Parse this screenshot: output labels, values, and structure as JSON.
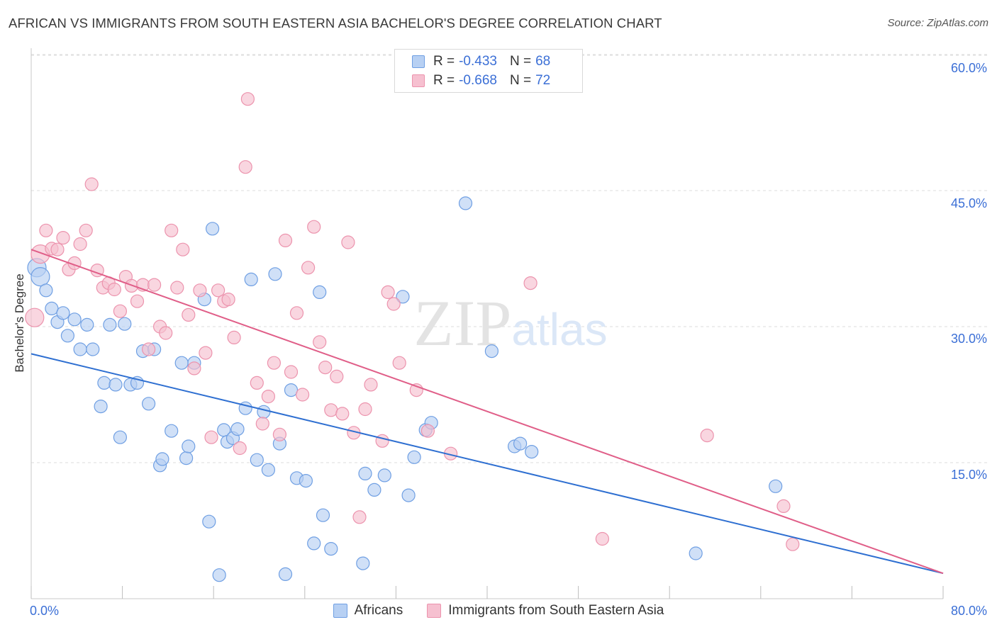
{
  "chart_data": {
    "type": "scatter",
    "title": "AFRICAN VS IMMIGRANTS FROM SOUTH EASTERN ASIA BACHELOR'S DEGREE CORRELATION CHART",
    "source": "Source: ZipAtlas.com",
    "ylabel": "Bachelor's Degree",
    "xlabel": "",
    "xlim": [
      0,
      80
    ],
    "ylim": [
      0,
      62
    ],
    "y_ticks": [
      15,
      30,
      45,
      60
    ],
    "y_tick_labels": [
      "15.0%",
      "30.0%",
      "45.0%",
      "60.0%"
    ],
    "x_tick_labels": [
      "0.0%",
      "80.0%"
    ],
    "watermark": "ZIPatlas",
    "legend": [
      {
        "r_label": "R = ",
        "r_value": "-0.433",
        "n_label": "N = ",
        "n_value": "68"
      },
      {
        "r_label": "R = ",
        "r_value": "-0.668",
        "n_label": "N = ",
        "n_value": "72"
      }
    ],
    "series": [
      {
        "name": "Africans",
        "color": "#6f9fe3",
        "fill": "#b7d0f3",
        "line_color": "#2e6fd1",
        "trend": {
          "x": [
            0,
            80
          ],
          "y": [
            27.0,
            2.8
          ]
        },
        "points": [
          [
            0.5,
            36.5
          ],
          [
            0.8,
            35.5
          ],
          [
            1.3,
            34.0
          ],
          [
            1.8,
            32.0
          ],
          [
            2.3,
            30.5
          ],
          [
            2.8,
            31.5
          ],
          [
            3.2,
            29.0
          ],
          [
            3.8,
            30.8
          ],
          [
            4.3,
            27.5
          ],
          [
            4.9,
            30.2
          ],
          [
            5.4,
            27.5
          ],
          [
            6.1,
            21.2
          ],
          [
            6.4,
            23.8
          ],
          [
            6.9,
            30.2
          ],
          [
            7.4,
            23.6
          ],
          [
            7.8,
            17.8
          ],
          [
            8.2,
            30.3
          ],
          [
            8.7,
            23.6
          ],
          [
            9.3,
            23.8
          ],
          [
            9.8,
            27.3
          ],
          [
            10.3,
            21.5
          ],
          [
            10.8,
            27.5
          ],
          [
            11.3,
            14.7
          ],
          [
            11.5,
            15.4
          ],
          [
            12.3,
            18.5
          ],
          [
            13.2,
            26.0
          ],
          [
            13.6,
            15.5
          ],
          [
            13.8,
            16.8
          ],
          [
            14.3,
            26.0
          ],
          [
            15.2,
            33.0
          ],
          [
            15.6,
            8.5
          ],
          [
            15.9,
            40.8
          ],
          [
            16.5,
            2.6
          ],
          [
            16.9,
            18.6
          ],
          [
            17.2,
            17.3
          ],
          [
            17.7,
            17.7
          ],
          [
            18.1,
            18.7
          ],
          [
            18.8,
            21.0
          ],
          [
            19.3,
            35.2
          ],
          [
            19.8,
            15.3
          ],
          [
            20.4,
            20.6
          ],
          [
            20.8,
            14.2
          ],
          [
            21.4,
            35.8
          ],
          [
            21.8,
            17.1
          ],
          [
            22.3,
            2.7
          ],
          [
            22.8,
            23.0
          ],
          [
            23.3,
            13.3
          ],
          [
            24.1,
            13.0
          ],
          [
            24.8,
            6.1
          ],
          [
            25.3,
            33.8
          ],
          [
            25.6,
            9.2
          ],
          [
            26.3,
            5.5
          ],
          [
            29.1,
            3.9
          ],
          [
            29.3,
            13.8
          ],
          [
            30.1,
            12.0
          ],
          [
            31.0,
            13.6
          ],
          [
            32.6,
            33.3
          ],
          [
            33.1,
            11.4
          ],
          [
            33.6,
            15.6
          ],
          [
            34.6,
            18.6
          ],
          [
            35.1,
            19.4
          ],
          [
            38.1,
            43.6
          ],
          [
            40.4,
            27.3
          ],
          [
            42.4,
            16.8
          ],
          [
            42.9,
            17.1
          ],
          [
            43.9,
            16.2
          ],
          [
            65.3,
            12.4
          ],
          [
            58.3,
            5.0
          ]
        ]
      },
      {
        "name": "Immigrants from South Eastern Asia",
        "color": "#ec93ad",
        "fill": "#f6c0d0",
        "line_color": "#e05e88",
        "trend": {
          "x": [
            0,
            80
          ],
          "y": [
            38.5,
            2.8
          ]
        },
        "points": [
          [
            0.3,
            31.0
          ],
          [
            0.8,
            38.0
          ],
          [
            1.3,
            40.6
          ],
          [
            1.8,
            38.6
          ],
          [
            2.3,
            38.5
          ],
          [
            2.8,
            39.8
          ],
          [
            3.3,
            36.3
          ],
          [
            3.8,
            37.0
          ],
          [
            4.3,
            39.1
          ],
          [
            4.8,
            40.6
          ],
          [
            5.3,
            45.7
          ],
          [
            5.8,
            36.2
          ],
          [
            6.3,
            34.3
          ],
          [
            6.8,
            34.8
          ],
          [
            7.3,
            34.1
          ],
          [
            7.8,
            31.7
          ],
          [
            8.3,
            35.5
          ],
          [
            8.8,
            34.5
          ],
          [
            9.3,
            32.8
          ],
          [
            9.8,
            34.6
          ],
          [
            10.3,
            27.5
          ],
          [
            10.8,
            34.6
          ],
          [
            11.3,
            30.0
          ],
          [
            11.8,
            29.3
          ],
          [
            12.3,
            40.6
          ],
          [
            12.8,
            34.3
          ],
          [
            13.3,
            38.5
          ],
          [
            13.8,
            31.3
          ],
          [
            14.3,
            25.4
          ],
          [
            14.8,
            34.0
          ],
          [
            15.3,
            27.1
          ],
          [
            15.8,
            17.8
          ],
          [
            16.4,
            34.0
          ],
          [
            16.9,
            32.8
          ],
          [
            17.3,
            33.0
          ],
          [
            17.8,
            28.8
          ],
          [
            18.3,
            16.6
          ],
          [
            18.8,
            47.6
          ],
          [
            19.0,
            55.1
          ],
          [
            19.8,
            23.8
          ],
          [
            20.3,
            19.3
          ],
          [
            20.8,
            22.3
          ],
          [
            21.3,
            26.0
          ],
          [
            21.8,
            18.1
          ],
          [
            22.3,
            39.5
          ],
          [
            22.8,
            25.0
          ],
          [
            23.3,
            31.5
          ],
          [
            23.8,
            22.5
          ],
          [
            24.3,
            36.5
          ],
          [
            24.8,
            41.0
          ],
          [
            25.3,
            28.3
          ],
          [
            25.8,
            25.5
          ],
          [
            26.3,
            20.8
          ],
          [
            26.8,
            24.5
          ],
          [
            27.3,
            20.4
          ],
          [
            27.8,
            39.3
          ],
          [
            28.3,
            18.3
          ],
          [
            28.8,
            9.0
          ],
          [
            29.3,
            20.9
          ],
          [
            29.8,
            23.6
          ],
          [
            30.8,
            17.4
          ],
          [
            31.3,
            33.8
          ],
          [
            31.8,
            32.5
          ],
          [
            32.3,
            26.0
          ],
          [
            33.8,
            23.0
          ],
          [
            34.8,
            18.5
          ],
          [
            36.8,
            16.0
          ],
          [
            43.8,
            34.8
          ],
          [
            50.1,
            6.6
          ],
          [
            59.3,
            18.0
          ],
          [
            66.0,
            10.2
          ],
          [
            66.8,
            6.0
          ]
        ]
      }
    ]
  }
}
